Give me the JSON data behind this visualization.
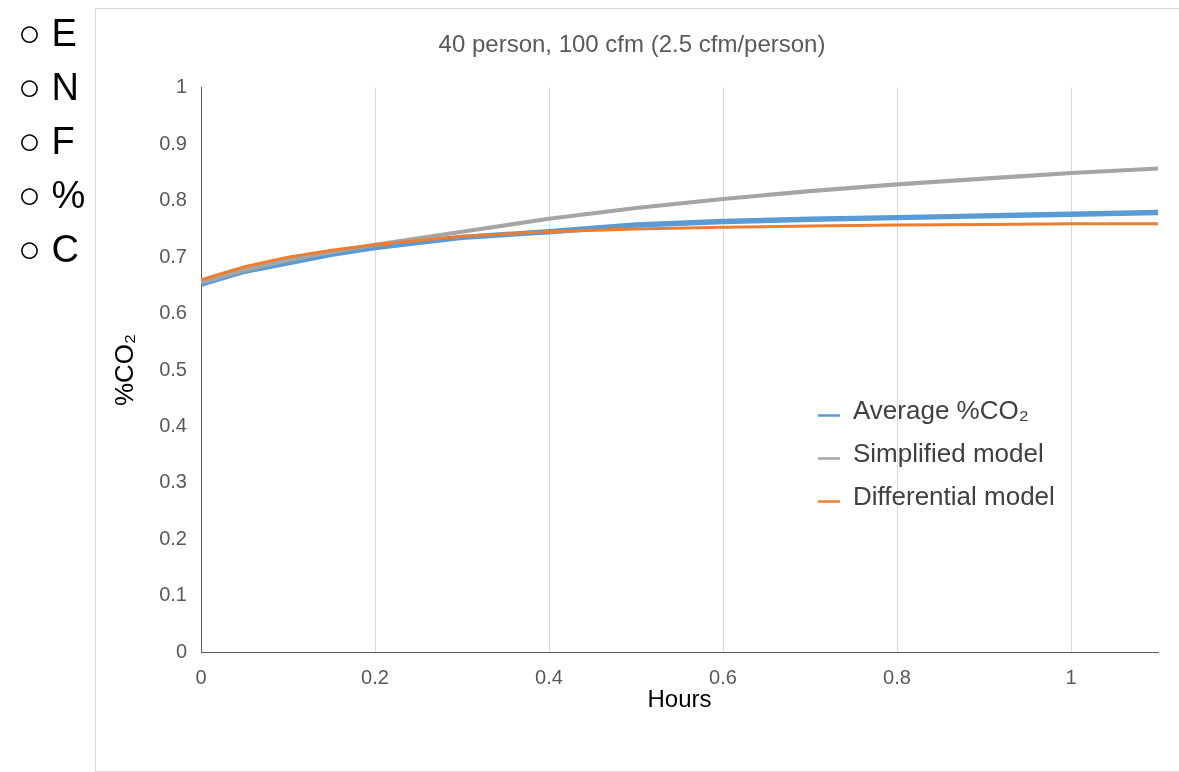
{
  "chart_data": {
    "type": "line",
    "title": "40 person, 100 cfm (2.5 cfm/person)",
    "xlabel": "Hours",
    "ylabel": "%CO₂",
    "xlim": [
      0,
      1.1
    ],
    "xticks": [
      0,
      0.2,
      0.4,
      0.6,
      0.8,
      1
    ],
    "ylim": [
      0,
      1
    ],
    "yticks": [
      0,
      0.1,
      0.2,
      0.3,
      0.4,
      0.5,
      0.6,
      0.7,
      0.8,
      0.9,
      1
    ],
    "grid": "x",
    "legend": "right",
    "marker": "none",
    "line_style": "solid",
    "annotations": [
      "○ E",
      "○ N",
      "○ F",
      "○ %",
      "○ C"
    ],
    "x": [
      0,
      0.05,
      0.1,
      0.15,
      0.2,
      0.3,
      0.4,
      0.5,
      0.6,
      0.7,
      0.8,
      0.9,
      1.0,
      1.1
    ],
    "series": [
      {
        "name": "Average %CO₂",
        "color": "#5b9bd5",
        "values": [
          0.652,
          0.675,
          0.69,
          0.705,
          0.717,
          0.735,
          0.745,
          0.757,
          0.763,
          0.767,
          0.77,
          0.773,
          0.776,
          0.779
        ]
      },
      {
        "name": "Simplified model",
        "color": "#a5a5a5",
        "values": [
          0.655,
          0.677,
          0.695,
          0.709,
          0.722,
          0.745,
          0.768,
          0.787,
          0.803,
          0.817,
          0.829,
          0.839,
          0.849,
          0.857
        ]
      },
      {
        "name": "Differential model",
        "color": "#ed7d31",
        "values": [
          0.66,
          0.683,
          0.7,
          0.712,
          0.722,
          0.737,
          0.745,
          0.75,
          0.753,
          0.755,
          0.757,
          0.758,
          0.759,
          0.759
        ]
      }
    ]
  }
}
